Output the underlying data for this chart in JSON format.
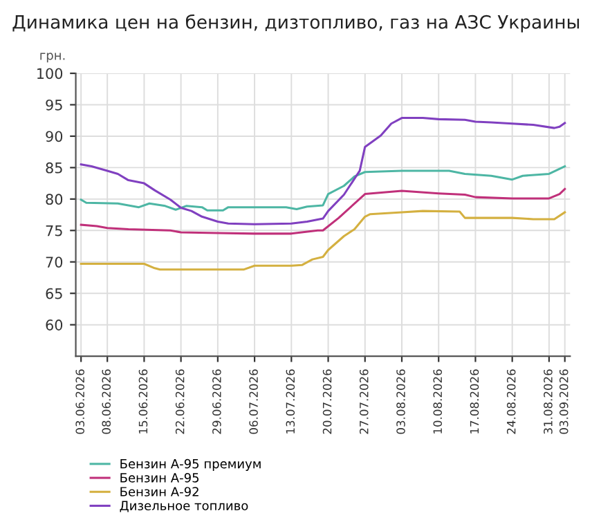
{
  "chart_data": {
    "type": "line",
    "title": "Динамика цен на бензин, дизтопливо, газ на АЗС Украины",
    "ylabel": "грн.",
    "xlim": [
      "2026-06-02",
      "2026-09-04"
    ],
    "ylim": [
      55,
      100
    ],
    "yticks": [
      60,
      65,
      70,
      75,
      80,
      85,
      90,
      95,
      100
    ],
    "xticks": [
      {
        "value": "2026-06-03",
        "label": "03.06.2026"
      },
      {
        "value": "2026-06-08",
        "label": "08.06.2026"
      },
      {
        "value": "2026-06-15",
        "label": "15.06.2026"
      },
      {
        "value": "2026-06-22",
        "label": "22.06.2026"
      },
      {
        "value": "2026-06-29",
        "label": "29.06.2026"
      },
      {
        "value": "2026-07-06",
        "label": "06.07.2026"
      },
      {
        "value": "2026-07-13",
        "label": "13.07.2026"
      },
      {
        "value": "2026-07-20",
        "label": "20.07.2026"
      },
      {
        "value": "2026-07-27",
        "label": "27.07.2026"
      },
      {
        "value": "2026-08-03",
        "label": "03.08.2026"
      },
      {
        "value": "2026-08-10",
        "label": "10.08.2026"
      },
      {
        "value": "2026-08-17",
        "label": "17.08.2026"
      },
      {
        "value": "2026-08-24",
        "label": "24.08.2026"
      },
      {
        "value": "2026-08-31",
        "label": "31.08.2026"
      },
      {
        "value": "2026-09-03",
        "label": "03.09.2026"
      }
    ],
    "grid": true,
    "legend": "bottom",
    "marker": "none",
    "line_style": "solid",
    "series": [
      {
        "name": "Бензин А-95 премиум",
        "color": "#4db6a4",
        "x": [
          "2026-06-03",
          "2026-06-04",
          "2026-06-10",
          "2026-06-14",
          "2026-06-16",
          "2026-06-19",
          "2026-06-21",
          "2026-06-23",
          "2026-06-26",
          "2026-06-27",
          "2026-06-30",
          "2026-07-01",
          "2026-07-12",
          "2026-07-14",
          "2026-07-16",
          "2026-07-19",
          "2026-07-20",
          "2026-07-23",
          "2026-07-25",
          "2026-07-27",
          "2026-08-03",
          "2026-08-12",
          "2026-08-15",
          "2026-08-20",
          "2026-08-24",
          "2026-08-26",
          "2026-08-31",
          "2026-09-03"
        ],
        "values": [
          79.9,
          79.4,
          79.3,
          78.7,
          79.3,
          78.9,
          78.3,
          78.9,
          78.7,
          78.2,
          78.2,
          78.7,
          78.7,
          78.4,
          78.8,
          79.0,
          80.8,
          82.1,
          83.6,
          84.3,
          84.5,
          84.5,
          84.0,
          83.7,
          83.1,
          83.7,
          84.0,
          85.2
        ]
      },
      {
        "name": "Бензин А-95",
        "color": "#c0307a",
        "x": [
          "2026-06-03",
          "2026-06-06",
          "2026-06-08",
          "2026-06-12",
          "2026-06-20",
          "2026-06-22",
          "2026-06-29",
          "2026-07-06",
          "2026-07-13",
          "2026-07-18",
          "2026-07-19",
          "2026-07-22",
          "2026-07-27",
          "2026-08-03",
          "2026-08-10",
          "2026-08-15",
          "2026-08-17",
          "2026-08-24",
          "2026-08-31",
          "2026-09-02",
          "2026-09-03"
        ],
        "values": [
          75.9,
          75.7,
          75.4,
          75.2,
          75.0,
          74.7,
          74.6,
          74.5,
          74.5,
          75.0,
          75.0,
          77.0,
          80.8,
          81.3,
          80.9,
          80.7,
          80.3,
          80.1,
          80.1,
          80.8,
          81.6
        ]
      },
      {
        "name": "Бензин А-92",
        "color": "#d4b040",
        "x": [
          "2026-06-03",
          "2026-06-15",
          "2026-06-17",
          "2026-06-18",
          "2026-07-04",
          "2026-07-06",
          "2026-07-13",
          "2026-07-15",
          "2026-07-17",
          "2026-07-19",
          "2026-07-20",
          "2026-07-23",
          "2026-07-25",
          "2026-07-27",
          "2026-07-28",
          "2026-08-03",
          "2026-08-07",
          "2026-08-14",
          "2026-08-15",
          "2026-08-24",
          "2026-08-28",
          "2026-09-01",
          "2026-09-03"
        ],
        "values": [
          69.7,
          69.7,
          69.0,
          68.8,
          68.8,
          69.4,
          69.4,
          69.5,
          70.4,
          70.8,
          71.9,
          74.1,
          75.2,
          77.2,
          77.6,
          77.9,
          78.1,
          78.0,
          77.0,
          77.0,
          76.8,
          76.8,
          77.9
        ]
      },
      {
        "name": "Дизельное топливо",
        "color": "#8040c0",
        "x": [
          "2026-06-03",
          "2026-06-05",
          "2026-06-08",
          "2026-06-10",
          "2026-06-12",
          "2026-06-15",
          "2026-06-17",
          "2026-06-20",
          "2026-06-22",
          "2026-06-24",
          "2026-06-26",
          "2026-06-29",
          "2026-07-01",
          "2026-07-06",
          "2026-07-13",
          "2026-07-16",
          "2026-07-19",
          "2026-07-20",
          "2026-07-23",
          "2026-07-26",
          "2026-07-27",
          "2026-07-30",
          "2026-08-01",
          "2026-08-03",
          "2026-08-07",
          "2026-08-10",
          "2026-08-15",
          "2026-08-17",
          "2026-08-20",
          "2026-08-24",
          "2026-08-28",
          "2026-09-01",
          "2026-09-02",
          "2026-09-03"
        ],
        "values": [
          85.5,
          85.2,
          84.5,
          84.0,
          83.0,
          82.5,
          81.4,
          79.9,
          78.6,
          78.1,
          77.2,
          76.4,
          76.1,
          76.0,
          76.1,
          76.4,
          76.9,
          78.1,
          80.7,
          84.5,
          88.3,
          90.1,
          92.0,
          92.9,
          92.9,
          92.7,
          92.6,
          92.3,
          92.2,
          92.0,
          91.8,
          91.3,
          91.5,
          92.1
        ]
      }
    ]
  }
}
